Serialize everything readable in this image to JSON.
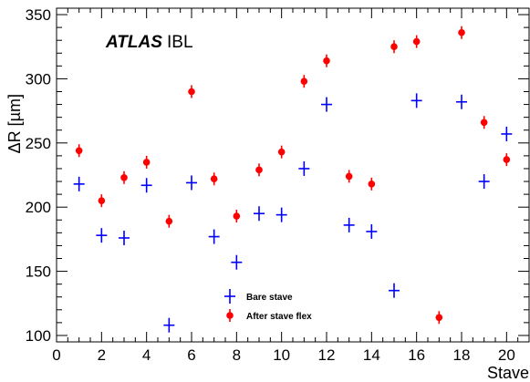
{
  "chart_data": {
    "type": "scatter",
    "title": "",
    "xlabel": "Stave",
    "ylabel": "ΔR [µm]",
    "xlim": [
      0,
      21
    ],
    "ylim": [
      95,
      355
    ],
    "x_ticks": [
      0,
      2,
      4,
      6,
      8,
      10,
      12,
      14,
      16,
      18,
      20
    ],
    "y_ticks": [
      100,
      150,
      200,
      250,
      300,
      350
    ],
    "grid": false,
    "legend_position": "bottom-center",
    "watermark": {
      "bold": "ATLAS",
      "rest": "IBL"
    },
    "series": [
      {
        "name": "Bare stave",
        "marker": "cross",
        "color": "#0000ff",
        "x": [
          1,
          2,
          3,
          4,
          5,
          6,
          7,
          8,
          9,
          10,
          11,
          12,
          13,
          14,
          15,
          16,
          17,
          18,
          19,
          20
        ],
        "y": [
          218,
          178,
          176,
          217,
          108,
          219,
          177,
          157,
          195,
          194,
          230,
          280,
          186,
          181,
          135,
          283,
          null,
          282,
          220,
          257
        ]
      },
      {
        "name": "After stave flex",
        "marker": "dot",
        "color": "#ff0000",
        "x": [
          1,
          2,
          3,
          4,
          5,
          6,
          7,
          8,
          9,
          10,
          11,
          12,
          13,
          14,
          15,
          16,
          17,
          18,
          19,
          20
        ],
        "y": [
          244,
          205,
          223,
          235,
          189,
          290,
          222,
          193,
          229,
          243,
          298,
          314,
          224,
          218,
          325,
          329,
          114,
          336,
          266,
          237
        ]
      }
    ]
  }
}
